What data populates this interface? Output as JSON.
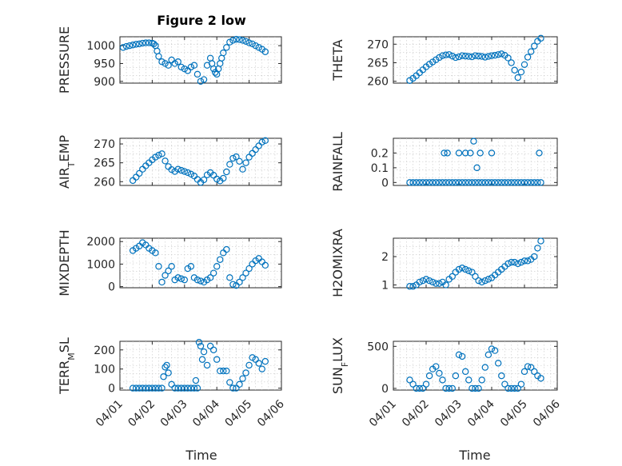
{
  "title": "Figure 2 low",
  "marker_color": "#0072BD",
  "chart_data": [
    {
      "type": "scatter",
      "ylabel": "PRESSURE",
      "ylim": [
        895,
        1025
      ],
      "yticks": [
        900,
        950,
        1000
      ],
      "xlim": [
        0,
        5
      ],
      "x": [
        0.1,
        0.2,
        0.3,
        0.4,
        0.5,
        0.6,
        0.7,
        0.8,
        0.9,
        1.0,
        1.05,
        1.1,
        1.15,
        1.2,
        1.3,
        1.4,
        1.5,
        1.6,
        1.7,
        1.8,
        1.9,
        2.0,
        2.1,
        2.2,
        2.3,
        2.4,
        2.5,
        2.6,
        2.7,
        2.8,
        2.85,
        2.9,
        2.95,
        3.0,
        3.05,
        3.1,
        3.15,
        3.2,
        3.3,
        3.4,
        3.5,
        3.6,
        3.7,
        3.8,
        3.9,
        4.0,
        4.1,
        4.2,
        4.3,
        4.4,
        4.5
      ],
      "y": [
        995,
        998,
        1000,
        1002,
        1004,
        1005,
        1007,
        1008,
        1008,
        1007,
        1005,
        1000,
        985,
        970,
        955,
        950,
        945,
        960,
        950,
        955,
        940,
        935,
        930,
        940,
        945,
        920,
        900,
        905,
        945,
        965,
        950,
        935,
        925,
        920,
        935,
        950,
        965,
        980,
        995,
        1010,
        1015,
        1018,
        1017,
        1015,
        1012,
        1008,
        1005,
        1000,
        995,
        990,
        983
      ]
    },
    {
      "type": "scatter",
      "ylabel": "THETA",
      "ylim": [
        259.5,
        272
      ],
      "yticks": [
        260,
        265,
        270
      ],
      "xlim": [
        0,
        5
      ],
      "x": [
        0.5,
        0.6,
        0.7,
        0.8,
        0.9,
        1.0,
        1.1,
        1.2,
        1.3,
        1.4,
        1.5,
        1.6,
        1.7,
        1.8,
        1.9,
        2.0,
        2.1,
        2.2,
        2.3,
        2.4,
        2.5,
        2.6,
        2.7,
        2.8,
        2.9,
        3.0,
        3.1,
        3.2,
        3.3,
        3.4,
        3.5,
        3.6,
        3.7,
        3.8,
        3.9,
        4.0,
        4.1,
        4.2,
        4.3,
        4.4,
        4.5
      ],
      "y": [
        260.2,
        260.8,
        261.5,
        262.3,
        263.1,
        263.9,
        264.6,
        265.2,
        265.8,
        266.4,
        266.9,
        267.1,
        267.2,
        266.8,
        266.4,
        266.6,
        266.9,
        266.8,
        266.7,
        266.6,
        266.9,
        266.8,
        266.7,
        266.5,
        266.7,
        266.9,
        267.0,
        267.2,
        267.4,
        267.0,
        266.3,
        265.0,
        263.0,
        261.0,
        262.5,
        264.5,
        266.5,
        268.0,
        269.5,
        270.8,
        271.6
      ]
    },
    {
      "type": "scatter",
      "ylabel": "AIR_TEMP",
      "ylim": [
        259,
        271.5
      ],
      "yticks": [
        260,
        265,
        270
      ],
      "xlim": [
        0,
        5
      ],
      "x": [
        0.4,
        0.5,
        0.6,
        0.7,
        0.8,
        0.9,
        1.0,
        1.1,
        1.2,
        1.3,
        1.4,
        1.5,
        1.6,
        1.7,
        1.8,
        1.9,
        2.0,
        2.1,
        2.2,
        2.3,
        2.4,
        2.5,
        2.6,
        2.7,
        2.8,
        2.9,
        3.0,
        3.1,
        3.2,
        3.3,
        3.4,
        3.5,
        3.6,
        3.7,
        3.8,
        3.9,
        4.0,
        4.1,
        4.2,
        4.3,
        4.4,
        4.5
      ],
      "y": [
        260.3,
        261.2,
        262.2,
        263.3,
        264.2,
        265.0,
        265.8,
        266.5,
        267.0,
        267.4,
        265.5,
        264.0,
        263.2,
        262.7,
        263.3,
        263.0,
        262.7,
        262.4,
        262.0,
        261.5,
        260.6,
        259.8,
        260.5,
        261.8,
        262.4,
        261.7,
        260.7,
        260.2,
        260.9,
        262.6,
        264.6,
        266.2,
        266.6,
        265.4,
        263.3,
        265.0,
        266.5,
        267.5,
        268.5,
        269.5,
        270.5,
        270.9
      ]
    },
    {
      "type": "scatter",
      "ylabel": "RAINFALL",
      "ylim": [
        -0.02,
        0.3
      ],
      "yticks": [
        0,
        0.1,
        0.2
      ],
      "xlim": [
        0,
        5
      ],
      "x": [
        0.5,
        0.6,
        0.7,
        0.8,
        0.9,
        1.0,
        1.1,
        1.2,
        1.3,
        1.4,
        1.5,
        1.6,
        1.7,
        1.8,
        1.9,
        2.0,
        2.1,
        2.2,
        2.3,
        2.4,
        2.5,
        2.6,
        2.7,
        2.8,
        2.9,
        3.0,
        3.1,
        3.2,
        3.3,
        3.4,
        3.5,
        3.6,
        3.7,
        3.8,
        3.9,
        4.0,
        4.1,
        4.2,
        4.3,
        4.4,
        4.5,
        1.55,
        1.65,
        2.0,
        2.2,
        2.35,
        2.45,
        2.55,
        2.65,
        3.0,
        4.45
      ],
      "y": [
        0,
        0,
        0,
        0,
        0,
        0,
        0,
        0,
        0,
        0,
        0,
        0,
        0,
        0,
        0,
        0,
        0,
        0,
        0,
        0,
        0,
        0,
        0,
        0,
        0,
        0,
        0,
        0,
        0,
        0,
        0,
        0,
        0,
        0,
        0,
        0,
        0,
        0,
        0,
        0,
        0,
        0.2,
        0.2,
        0.2,
        0.2,
        0.2,
        0.28,
        0.1,
        0.2,
        0.2,
        0.2
      ]
    },
    {
      "type": "scatter",
      "ylabel": "MIXDEPTH",
      "ylim": [
        -50,
        2150
      ],
      "yticks": [
        0,
        1000,
        2000
      ],
      "xlim": [
        0,
        5
      ],
      "x": [
        0.4,
        0.5,
        0.6,
        0.7,
        0.8,
        0.9,
        1.0,
        1.1,
        1.2,
        1.3,
        1.4,
        1.5,
        1.6,
        1.7,
        1.8,
        1.9,
        2.0,
        2.1,
        2.2,
        2.3,
        2.4,
        2.5,
        2.6,
        2.7,
        2.8,
        2.9,
        3.0,
        3.1,
        3.2,
        3.3,
        3.4,
        3.5,
        3.6,
        3.7,
        3.8,
        3.9,
        4.0,
        4.1,
        4.2,
        4.3,
        4.4,
        4.5
      ],
      "y": [
        1600,
        1700,
        1800,
        1950,
        1850,
        1700,
        1600,
        1500,
        900,
        200,
        500,
        700,
        900,
        300,
        400,
        350,
        300,
        800,
        900,
        400,
        300,
        250,
        200,
        300,
        400,
        600,
        900,
        1200,
        1500,
        1650,
        400,
        100,
        50,
        200,
        400,
        600,
        800,
        1000,
        1150,
        1250,
        1100,
        950
      ]
    },
    {
      "type": "scatter",
      "ylabel": "H2OMIXRA",
      "ylim": [
        0.9,
        2.65
      ],
      "yticks": [
        1,
        2
      ],
      "xlim": [
        0,
        5
      ],
      "x": [
        0.5,
        0.6,
        0.7,
        0.8,
        0.9,
        1.0,
        1.1,
        1.2,
        1.3,
        1.4,
        1.5,
        1.6,
        1.7,
        1.8,
        1.9,
        2.0,
        2.1,
        2.2,
        2.3,
        2.4,
        2.5,
        2.6,
        2.7,
        2.8,
        2.9,
        3.0,
        3.1,
        3.2,
        3.3,
        3.4,
        3.5,
        3.6,
        3.7,
        3.8,
        3.9,
        4.0,
        4.1,
        4.2,
        4.3,
        4.4,
        4.5
      ],
      "y": [
        0.95,
        0.95,
        1.0,
        1.1,
        1.15,
        1.2,
        1.15,
        1.1,
        1.05,
        1.05,
        1.1,
        1.0,
        1.2,
        1.3,
        1.45,
        1.55,
        1.6,
        1.55,
        1.5,
        1.45,
        1.3,
        1.15,
        1.1,
        1.15,
        1.2,
        1.25,
        1.35,
        1.45,
        1.55,
        1.65,
        1.75,
        1.8,
        1.8,
        1.75,
        1.8,
        1.85,
        1.85,
        1.9,
        2.0,
        2.3,
        2.55
      ]
    },
    {
      "type": "scatter",
      "ylabel": "TERR_MSL",
      "ylim": [
        -10,
        245
      ],
      "yticks": [
        0,
        100,
        200
      ],
      "xlim": [
        0,
        5
      ],
      "x": [
        0.4,
        0.5,
        0.6,
        0.7,
        0.8,
        0.9,
        1.0,
        1.1,
        1.2,
        1.3,
        1.35,
        1.4,
        1.45,
        1.5,
        1.6,
        1.7,
        1.8,
        1.9,
        2.0,
        2.1,
        2.2,
        2.3,
        2.35,
        2.4,
        2.45,
        2.5,
        2.55,
        2.6,
        2.7,
        2.8,
        2.9,
        3.0,
        3.1,
        3.2,
        3.3,
        3.4,
        3.5,
        3.6,
        3.7,
        3.8,
        3.9,
        4.0,
        4.1,
        4.2,
        4.3,
        4.4,
        4.5
      ],
      "y": [
        0,
        0,
        0,
        0,
        0,
        0,
        0,
        0,
        0,
        0,
        60,
        110,
        120,
        80,
        20,
        0,
        0,
        0,
        0,
        0,
        0,
        0,
        40,
        0,
        240,
        220,
        150,
        190,
        120,
        220,
        200,
        150,
        90,
        90,
        90,
        30,
        0,
        0,
        20,
        50,
        80,
        120,
        160,
        150,
        130,
        100,
        140
      ]
    },
    {
      "type": "scatter",
      "ylabel": "SUN_FLUX",
      "ylim": [
        -20,
        560
      ],
      "yticks": [
        0,
        500
      ],
      "xlim": [
        0,
        5
      ],
      "x": [
        0.5,
        0.6,
        0.7,
        0.8,
        0.9,
        1.0,
        1.1,
        1.2,
        1.3,
        1.4,
        1.5,
        1.6,
        1.7,
        1.8,
        1.9,
        2.0,
        2.1,
        2.2,
        2.3,
        2.4,
        2.5,
        2.6,
        2.7,
        2.8,
        2.9,
        3.0,
        3.1,
        3.2,
        3.3,
        3.4,
        3.5,
        3.6,
        3.7,
        3.8,
        3.9,
        4.0,
        4.1,
        4.2,
        4.3,
        4.4,
        4.5
      ],
      "y": [
        100,
        50,
        0,
        0,
        0,
        50,
        150,
        230,
        260,
        180,
        100,
        0,
        0,
        0,
        150,
        400,
        380,
        200,
        100,
        0,
        0,
        0,
        100,
        250,
        400,
        470,
        450,
        300,
        150,
        50,
        0,
        0,
        0,
        0,
        50,
        200,
        260,
        250,
        200,
        150,
        120
      ]
    }
  ],
  "xticklabels": [
    "04/01",
    "04/02",
    "04/03",
    "04/04",
    "04/05",
    "04/06"
  ],
  "xlabel": "Time"
}
